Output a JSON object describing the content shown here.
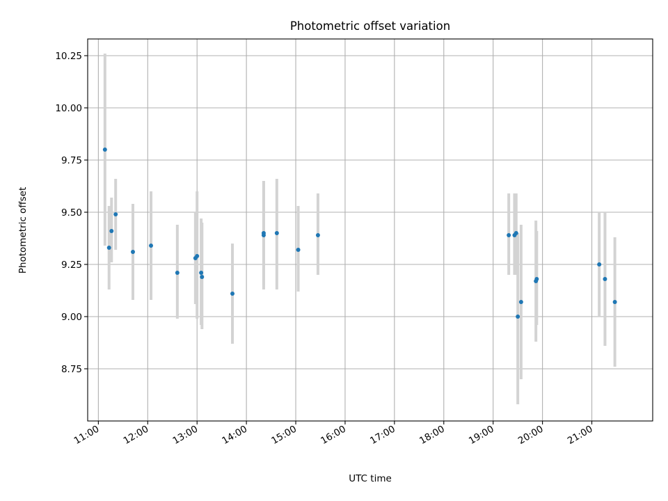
{
  "chart_data": {
    "type": "scatter",
    "title": "Photometric offset variation",
    "xlabel": "UTC time",
    "ylabel": "Photometric offset",
    "xlim": [
      "10:47",
      "22:14"
    ],
    "ylim": [
      8.5,
      10.33
    ],
    "x_ticks": [
      "11:00",
      "12:00",
      "13:00",
      "14:00",
      "15:00",
      "16:00",
      "17:00",
      "18:00",
      "19:00",
      "20:00",
      "21:00"
    ],
    "y_ticks": [
      8.75,
      9.0,
      9.25,
      9.5,
      9.75,
      10.0,
      10.25
    ],
    "y_tick_labels": [
      "8.75",
      "9.00",
      "9.25",
      "9.50",
      "9.75",
      "10.00",
      "10.25"
    ],
    "grid": true,
    "marker_color": "#1f77b4",
    "errorbar_color": "#d3d3d3",
    "points": [
      {
        "t": "11:08",
        "y": 9.8,
        "lo": 9.34,
        "hi": 10.26
      },
      {
        "t": "11:13",
        "y": 9.33,
        "lo": 9.13,
        "hi": 9.53
      },
      {
        "t": "11:16",
        "y": 9.41,
        "lo": 9.26,
        "hi": 9.57
      },
      {
        "t": "11:21",
        "y": 9.49,
        "lo": 9.32,
        "hi": 9.66
      },
      {
        "t": "11:42",
        "y": 9.31,
        "lo": 9.08,
        "hi": 9.54
      },
      {
        "t": "12:04",
        "y": 9.34,
        "lo": 9.08,
        "hi": 9.6
      },
      {
        "t": "12:36",
        "y": 9.21,
        "lo": 8.99,
        "hi": 9.44
      },
      {
        "t": "12:58",
        "y": 9.28,
        "lo": 9.06,
        "hi": 9.5
      },
      {
        "t": "13:00",
        "y": 9.29,
        "lo": 8.99,
        "hi": 9.6
      },
      {
        "t": "13:05",
        "y": 9.21,
        "lo": 8.96,
        "hi": 9.47
      },
      {
        "t": "13:06",
        "y": 9.19,
        "lo": 8.94,
        "hi": 9.45
      },
      {
        "t": "13:43",
        "y": 9.11,
        "lo": 8.87,
        "hi": 9.35
      },
      {
        "t": "14:21",
        "y": 9.39,
        "lo": 9.13,
        "hi": 9.65
      },
      {
        "t": "14:21",
        "y": 9.4,
        "lo": 9.15,
        "hi": 9.65
      },
      {
        "t": "14:37",
        "y": 9.4,
        "lo": 9.13,
        "hi": 9.66
      },
      {
        "t": "15:03",
        "y": 9.32,
        "lo": 9.12,
        "hi": 9.53
      },
      {
        "t": "15:27",
        "y": 9.39,
        "lo": 9.2,
        "hi": 9.59
      },
      {
        "t": "19:19",
        "y": 9.39,
        "lo": 9.2,
        "hi": 9.59
      },
      {
        "t": "19:26",
        "y": 9.39,
        "lo": 9.2,
        "hi": 9.59
      },
      {
        "t": "19:28",
        "y": 9.4,
        "lo": 9.2,
        "hi": 9.59
      },
      {
        "t": "19:30",
        "y": 9.0,
        "lo": 8.58,
        "hi": 9.4
      },
      {
        "t": "19:34",
        "y": 9.07,
        "lo": 8.7,
        "hi": 9.44
      },
      {
        "t": "19:52",
        "y": 9.17,
        "lo": 8.88,
        "hi": 9.46
      },
      {
        "t": "19:53",
        "y": 9.18,
        "lo": 8.96,
        "hi": 9.41
      },
      {
        "t": "21:09",
        "y": 9.25,
        "lo": 9.0,
        "hi": 9.5
      },
      {
        "t": "21:16",
        "y": 9.18,
        "lo": 8.86,
        "hi": 9.5
      },
      {
        "t": "21:28",
        "y": 9.07,
        "lo": 8.76,
        "hi": 9.38
      }
    ]
  }
}
